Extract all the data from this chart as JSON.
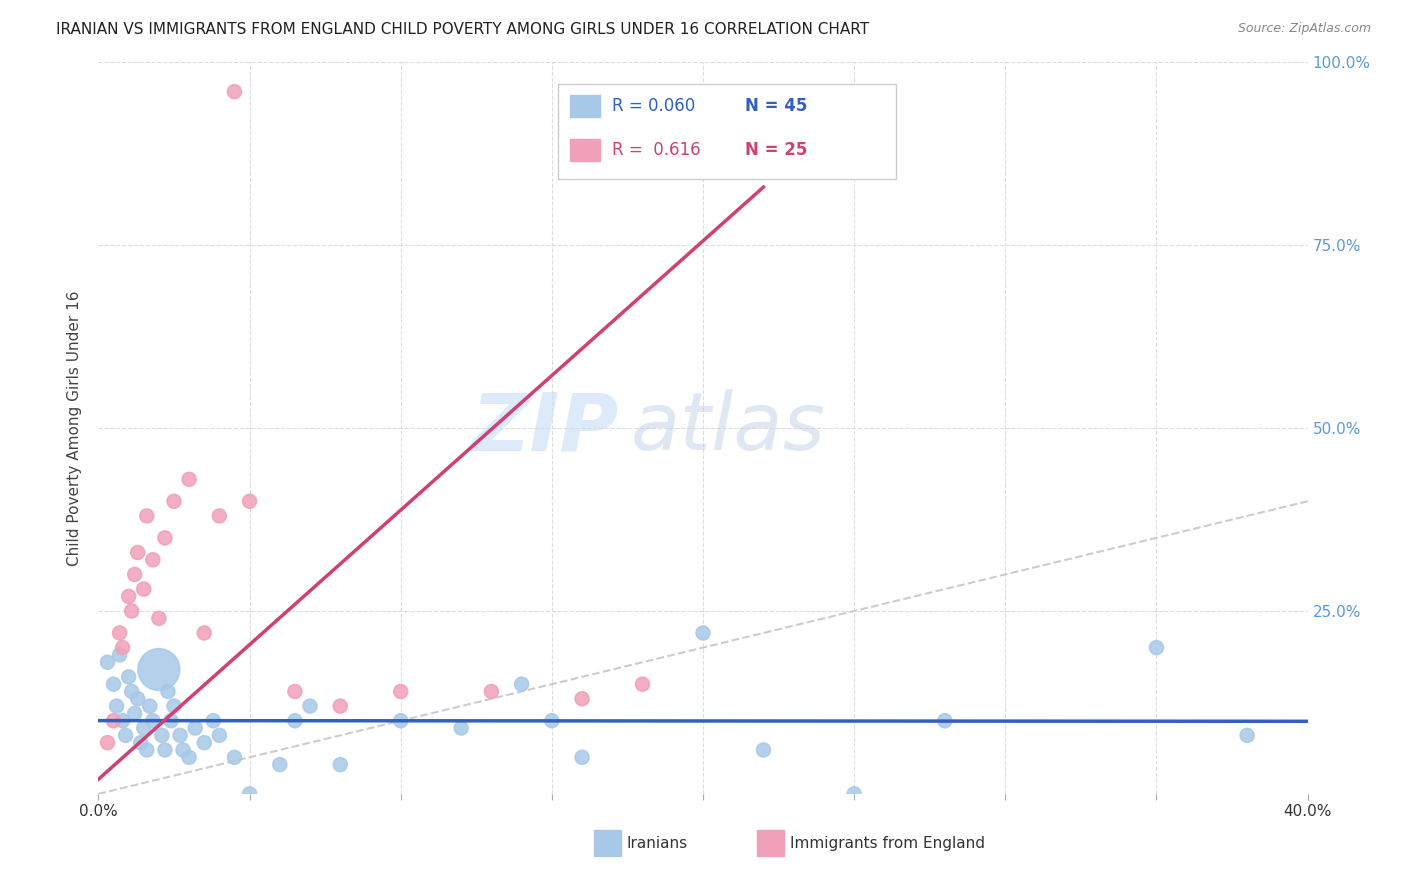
{
  "title": "IRANIAN VS IMMIGRANTS FROM ENGLAND CHILD POVERTY AMONG GIRLS UNDER 16 CORRELATION CHART",
  "source": "Source: ZipAtlas.com",
  "ylabel": "Child Poverty Among Girls Under 16",
  "xlim": [
    0.0,
    0.4
  ],
  "ylim": [
    0.0,
    1.0
  ],
  "right_ytick_color": "#5b9bd5",
  "watermark_zip": "ZIP",
  "watermark_atlas": "atlas",
  "legend_r1": "0.060",
  "legend_n1": "45",
  "legend_r2": "0.616",
  "legend_n2": "25",
  "iranians_color": "#a8c8e8",
  "england_color": "#f0a0b8",
  "iranians_line_color": "#3060c0",
  "england_line_color": "#d04070",
  "diagonal_color": "#cccccc",
  "background_color": "#ffffff",
  "grid_color": "#dddddd",
  "iranians_x": [
    0.003,
    0.005,
    0.006,
    0.007,
    0.008,
    0.009,
    0.01,
    0.011,
    0.012,
    0.013,
    0.014,
    0.015,
    0.016,
    0.017,
    0.018,
    0.02,
    0.021,
    0.022,
    0.023,
    0.024,
    0.025,
    0.027,
    0.028,
    0.03,
    0.032,
    0.035,
    0.038,
    0.04,
    0.045,
    0.05,
    0.06,
    0.065,
    0.07,
    0.08,
    0.1,
    0.12,
    0.14,
    0.15,
    0.16,
    0.2,
    0.22,
    0.25,
    0.28,
    0.35,
    0.38
  ],
  "iranians_y": [
    0.18,
    0.15,
    0.12,
    0.19,
    0.1,
    0.08,
    0.16,
    0.14,
    0.11,
    0.13,
    0.07,
    0.09,
    0.06,
    0.12,
    0.1,
    0.17,
    0.08,
    0.06,
    0.14,
    0.1,
    0.12,
    0.08,
    0.06,
    0.05,
    0.09,
    0.07,
    0.1,
    0.08,
    0.05,
    0.0,
    0.04,
    0.1,
    0.12,
    0.04,
    0.1,
    0.09,
    0.15,
    0.1,
    0.05,
    0.22,
    0.06,
    0.0,
    0.1,
    0.2,
    0.08
  ],
  "iranians_size": [
    20,
    20,
    20,
    20,
    20,
    20,
    20,
    20,
    20,
    20,
    20,
    20,
    20,
    20,
    20,
    180,
    20,
    20,
    20,
    20,
    20,
    20,
    20,
    20,
    20,
    20,
    20,
    20,
    20,
    20,
    20,
    20,
    20,
    20,
    20,
    20,
    20,
    20,
    20,
    20,
    20,
    20,
    20,
    20,
    20
  ],
  "england_x": [
    0.003,
    0.005,
    0.007,
    0.008,
    0.01,
    0.011,
    0.012,
    0.013,
    0.015,
    0.016,
    0.018,
    0.02,
    0.022,
    0.025,
    0.03,
    0.035,
    0.04,
    0.045,
    0.05,
    0.065,
    0.08,
    0.1,
    0.13,
    0.16,
    0.18
  ],
  "england_y": [
    0.07,
    0.1,
    0.22,
    0.2,
    0.27,
    0.25,
    0.3,
    0.33,
    0.28,
    0.38,
    0.32,
    0.24,
    0.35,
    0.4,
    0.43,
    0.22,
    0.38,
    0.96,
    0.4,
    0.14,
    0.12,
    0.14,
    0.14,
    0.13,
    0.15
  ],
  "england_size": [
    20,
    20,
    20,
    20,
    20,
    20,
    20,
    20,
    20,
    20,
    20,
    20,
    20,
    20,
    20,
    20,
    20,
    20,
    20,
    20,
    20,
    20,
    20,
    20,
    20
  ]
}
